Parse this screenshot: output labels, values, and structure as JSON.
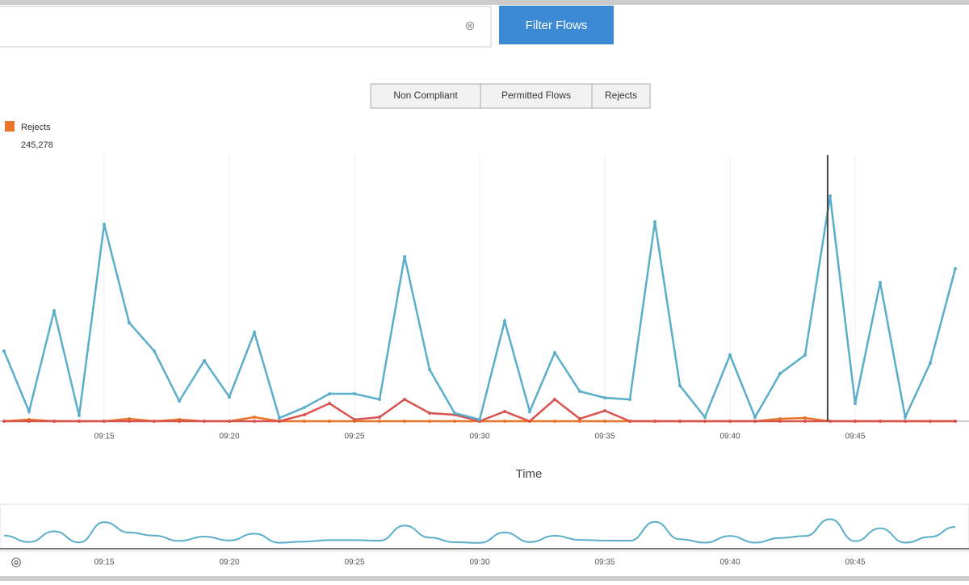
{
  "search": {
    "clear_icon": "⊗"
  },
  "filter_button": "Filter Flows",
  "toggle_buttons": [
    "Non Compliant",
    "Permitted Flows",
    "Rejects"
  ],
  "tooltip": {
    "name": "Rejects",
    "value": "245,278"
  },
  "corner_icon": "◎",
  "chart_data": {
    "type": "line",
    "x_label": "Time",
    "categories": [
      null,
      null,
      null,
      null,
      "09:15",
      null,
      null,
      null,
      null,
      "09:20",
      null,
      null,
      null,
      null,
      "09:25",
      null,
      null,
      null,
      null,
      "09:30",
      null,
      null,
      null,
      null,
      "09:35",
      null,
      null,
      null,
      null,
      "09:40",
      null,
      null,
      null,
      null,
      "09:45",
      null,
      null,
      null,
      null
    ],
    "ylim": [
      0,
      330
    ],
    "cursor_index": 32.9,
    "grid": true,
    "series": [
      {
        "name": "Permitted Flows",
        "color": "#5aaec9",
        "values": [
          87,
          12,
          137,
          7,
          244,
          122,
          87,
          25,
          75,
          30,
          110,
          4,
          17,
          34,
          34,
          27,
          204,
          64,
          10,
          2,
          124,
          12,
          85,
          37,
          29,
          27,
          247,
          44,
          5,
          82,
          5,
          59,
          82,
          279,
          22,
          172,
          5,
          72,
          189
        ]
      },
      {
        "name": "Non Compliant",
        "color": "#d9534f",
        "values": [
          0,
          0,
          0,
          0,
          0,
          0,
          0,
          0,
          0,
          0,
          0,
          0,
          8,
          22,
          2,
          5,
          27,
          10,
          8,
          0,
          12,
          0,
          27,
          3,
          13,
          0,
          0,
          0,
          0,
          0,
          0,
          0,
          0,
          0,
          0,
          0,
          0,
          0,
          0
        ]
      },
      {
        "name": "Rejects",
        "color": "#e8742a",
        "values": [
          0,
          2,
          0,
          0,
          0,
          3,
          0,
          2,
          0,
          0,
          5,
          0,
          0,
          0,
          0,
          0,
          0,
          0,
          0,
          0,
          0,
          0,
          0,
          0,
          0,
          0,
          0,
          0,
          0,
          0,
          0,
          3,
          4,
          0,
          0,
          0,
          0,
          0,
          0
        ]
      }
    ]
  }
}
